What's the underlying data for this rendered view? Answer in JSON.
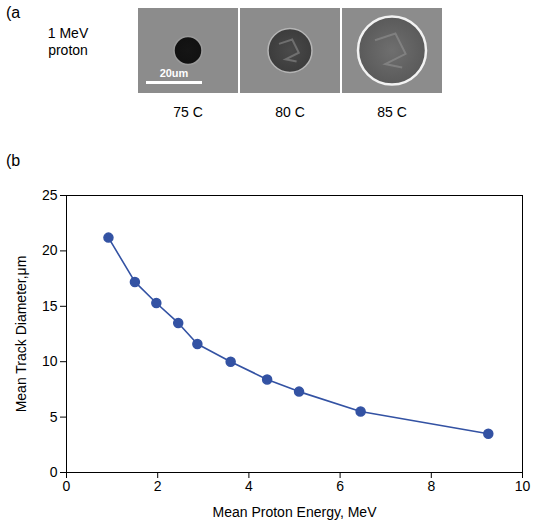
{
  "panel_a": {
    "panel_label": "(a",
    "row_label": "1 MeV proton",
    "scale_bar": "20um",
    "images": [
      "75 C",
      "80 C",
      "85 C"
    ]
  },
  "chart_data": {
    "type": "line",
    "panel_label": "(b",
    "x_label": "Mean Proton Energy, MeV",
    "y_label": "Mean Track Diameter,μm",
    "x": [
      0.92,
      1.5,
      1.97,
      2.45,
      2.87,
      3.6,
      4.4,
      5.1,
      6.45,
      9.25
    ],
    "values": [
      21.2,
      17.2,
      15.3,
      13.5,
      11.6,
      10.0,
      8.4,
      7.3,
      5.5,
      3.5
    ],
    "color": "#3352a3",
    "marker": "circle",
    "line_style": "solid",
    "xlim": [
      0,
      10
    ],
    "xticks": [
      0,
      2,
      4,
      6,
      8,
      10
    ],
    "ylim": [
      0,
      25
    ],
    "yticks": [
      0,
      5,
      10,
      15,
      20,
      25
    ],
    "grid": false
  }
}
